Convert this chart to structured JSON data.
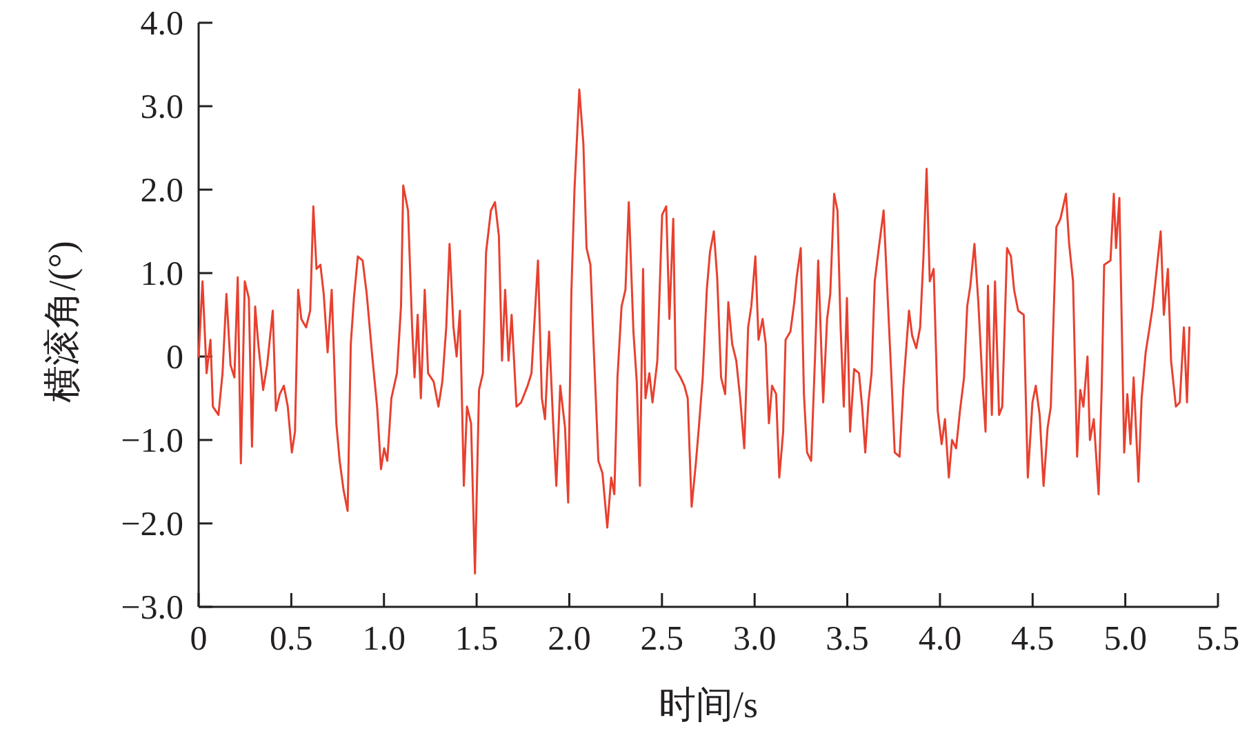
{
  "chart_data": {
    "type": "line",
    "xlabel": "时间/s",
    "ylabel": "横滚角/(°)",
    "color": "#e8402f",
    "xlim": [
      0,
      5.5
    ],
    "ylim": [
      -3,
      4
    ],
    "xticks": [
      0,
      {
        "value": 0.5,
        "label": "0.5"
      },
      {
        "value": 1,
        "label": "1.0"
      },
      {
        "value": 1.5,
        "label": "1.5"
      },
      {
        "value": 2,
        "label": "2.0"
      },
      {
        "value": 2.5,
        "label": "2.5"
      },
      {
        "value": 3,
        "label": "3.0"
      },
      {
        "value": 3.5,
        "label": "3.5"
      },
      {
        "value": 4,
        "label": "4.0"
      },
      {
        "value": 4.5,
        "label": "4.5"
      },
      {
        "value": 5,
        "label": "5.0"
      },
      {
        "value": 5.5,
        "label": "5.5"
      }
    ],
    "yticks": [
      {
        "value": -3,
        "label": "−3.0"
      },
      {
        "value": -2,
        "label": "−2.0"
      },
      {
        "value": -1,
        "label": "−1.0"
      },
      0,
      {
        "value": 1,
        "label": "1.0"
      },
      {
        "value": 2,
        "label": "2.0"
      },
      {
        "value": 3,
        "label": "3.0"
      },
      {
        "value": 4,
        "label": "4.0"
      }
    ],
    "grid": false,
    "x": [
      0,
      0.021,
      0.043,
      0.064,
      0.077,
      0.107,
      0.129,
      0.15,
      0.172,
      0.193,
      0.211,
      0.228,
      0.249,
      0.271,
      0.288,
      0.305,
      0.322,
      0.348,
      0.37,
      0.4,
      0.417,
      0.438,
      0.46,
      0.481,
      0.503,
      0.52,
      0.537,
      0.554,
      0.58,
      0.602,
      0.619,
      0.636,
      0.657,
      0.675,
      0.696,
      0.718,
      0.743,
      0.761,
      0.782,
      0.804,
      0.821,
      0.838,
      0.859,
      0.885,
      0.907,
      0.937,
      0.963,
      0.984,
      1.001,
      1.018,
      1.04,
      1.07,
      1.092,
      1.104,
      1.13,
      1.152,
      1.165,
      1.182,
      1.199,
      1.22,
      1.238,
      1.268,
      1.294,
      1.315,
      1.336,
      1.354,
      1.375,
      1.392,
      1.41,
      1.431,
      1.448,
      1.47,
      1.491,
      1.513,
      1.534,
      1.551,
      1.577,
      1.599,
      1.62,
      1.637,
      1.654,
      1.672,
      1.689,
      1.715,
      1.74,
      1.775,
      1.796,
      1.831,
      1.852,
      1.869,
      1.891,
      1.912,
      1.93,
      1.951,
      1.977,
      1.994,
      2.011,
      2.028,
      2.054,
      2.076,
      2.093,
      2.114,
      2.131,
      2.157,
      2.179,
      2.205,
      2.226,
      2.243,
      2.26,
      2.282,
      2.303,
      2.321,
      2.346,
      2.364,
      2.381,
      2.398,
      2.411,
      2.432,
      2.449,
      2.475,
      2.501,
      2.523,
      2.54,
      2.561,
      2.574,
      2.6,
      2.621,
      2.639,
      2.66,
      2.682,
      2.699,
      2.72,
      2.742,
      2.759,
      2.78,
      2.798,
      2.819,
      2.841,
      2.858,
      2.879,
      2.901,
      2.922,
      2.944,
      2.965,
      2.982,
      3.004,
      3.021,
      3.043,
      3.06,
      3.077,
      3.094,
      3.116,
      3.133,
      3.154,
      3.167,
      3.193,
      3.214,
      3.227,
      3.249,
      3.266,
      3.283,
      3.305,
      3.326,
      3.343,
      3.37,
      3.391,
      3.408,
      3.429,
      3.447,
      3.464,
      3.481,
      3.498,
      3.515,
      3.537,
      3.563,
      3.58,
      3.597,
      3.614,
      3.631,
      3.648,
      3.67,
      3.696,
      3.717,
      3.739,
      3.756,
      3.782,
      3.803,
      3.833,
      3.85,
      3.872,
      3.893,
      3.911,
      3.928,
      3.945,
      3.966,
      3.988,
      4.009,
      4.027,
      4.048,
      4.065,
      4.087,
      4.108,
      4.13,
      4.147,
      4.164,
      4.186,
      4.207,
      4.229,
      4.246,
      4.259,
      4.28,
      4.297,
      4.319,
      4.336,
      4.362,
      4.383,
      4.4,
      4.422,
      4.452,
      4.474,
      4.499,
      4.517,
      4.538,
      4.559,
      4.581,
      4.598,
      4.628,
      4.65,
      4.68,
      4.697,
      4.718,
      4.74,
      4.757,
      4.774,
      4.796,
      4.809,
      4.83,
      4.856,
      4.873,
      4.886,
      4.92,
      4.938,
      4.95,
      4.968,
      4.994,
      5.011,
      5.028,
      5.045,
      5.071,
      5.088,
      5.11,
      5.131,
      5.148,
      5.165,
      5.191,
      5.208,
      5.23,
      5.247,
      5.273,
      5.294,
      5.316,
      5.333,
      5.346
    ],
    "values": [
      0,
      0.9,
      -0.2,
      0.2,
      -0.6,
      -0.7,
      -0.2,
      0.75,
      -0.1,
      -0.25,
      0.95,
      -1.28,
      0.9,
      0.7,
      -1.08,
      0.6,
      0.15,
      -0.4,
      -0.1,
      0.55,
      -0.65,
      -0.45,
      -0.35,
      -0.6,
      -1.15,
      -0.9,
      0.8,
      0.45,
      0.35,
      0.55,
      1.8,
      1.05,
      1.1,
      0.75,
      0.05,
      0.8,
      -0.8,
      -1.25,
      -1.6,
      -1.85,
      0.15,
      0.7,
      1.2,
      1.15,
      0.75,
      0,
      -0.6,
      -1.35,
      -1.1,
      -1.25,
      -0.5,
      -0.2,
      0.6,
      2.05,
      1.75,
      0.35,
      -0.25,
      0.5,
      -0.5,
      0.8,
      -0.2,
      -0.3,
      -0.6,
      -0.3,
      0.35,
      1.35,
      0.35,
      0,
      0.55,
      -1.55,
      -0.6,
      -0.8,
      -2.6,
      -0.4,
      -0.2,
      1.25,
      1.75,
      1.85,
      1.45,
      -0.05,
      0.8,
      -0.05,
      0.5,
      -0.6,
      -0.55,
      -0.35,
      -0.2,
      1.15,
      -0.5,
      -0.75,
      0.3,
      -0.75,
      -1.55,
      -0.35,
      -0.85,
      -1.75,
      0.75,
      2.0,
      3.2,
      2.55,
      1.3,
      1.1,
      0.15,
      -1.25,
      -1.4,
      -2.05,
      -1.45,
      -1.65,
      -0.25,
      0.6,
      0.8,
      1.85,
      0.3,
      -0.3,
      -1.55,
      1.05,
      -0.5,
      -0.2,
      -0.55,
      -0.05,
      1.7,
      1.8,
      0.45,
      1.65,
      -0.15,
      -0.25,
      -0.35,
      -0.5,
      -1.8,
      -1.3,
      -0.85,
      -0.25,
      0.8,
      1.25,
      1.5,
      0.95,
      -0.25,
      -0.45,
      0.65,
      0.15,
      -0.05,
      -0.5,
      -1.1,
      0.35,
      0.6,
      1.2,
      0.2,
      0.45,
      0.15,
      -0.8,
      -0.35,
      -0.45,
      -1.45,
      -0.9,
      0.2,
      0.3,
      0.65,
      0.95,
      1.3,
      -0.45,
      -1.15,
      -1.25,
      0,
      1.15,
      -0.55,
      0.45,
      0.75,
      1.95,
      1.75,
      0.35,
      -0.6,
      0.7,
      -0.9,
      -0.15,
      -0.2,
      -0.6,
      -1.15,
      -0.55,
      -0.2,
      0.9,
      1.3,
      1.75,
      0.75,
      -0.3,
      -1.15,
      -1.2,
      -0.35,
      0.55,
      0.25,
      0.1,
      0.35,
      1.2,
      2.25,
      0.9,
      1.05,
      -0.65,
      -1.05,
      -0.75,
      -1.45,
      -1.0,
      -1.1,
      -0.65,
      -0.25,
      0.6,
      0.85,
      1.35,
      0.65,
      -0.3,
      -0.9,
      0.85,
      -0.7,
      0.9,
      -0.7,
      -0.6,
      1.3,
      1.2,
      0.8,
      0.55,
      0.5,
      -1.45,
      -0.55,
      -0.35,
      -0.7,
      -1.55,
      -0.85,
      -0.6,
      1.55,
      1.65,
      1.95,
      1.35,
      0.9,
      -1.2,
      -0.4,
      -0.6,
      0,
      -1.0,
      -0.75,
      -1.65,
      -0.35,
      1.1,
      1.15,
      1.95,
      1.3,
      1.9,
      -1.15,
      -0.45,
      -1.05,
      -0.25,
      -1.5,
      -0.5,
      0.05,
      0.35,
      0.6,
      0.95,
      1.5,
      0.5,
      1.05,
      -0.05,
      -0.6,
      -0.55,
      0.35,
      -0.55,
      0.35
    ]
  }
}
